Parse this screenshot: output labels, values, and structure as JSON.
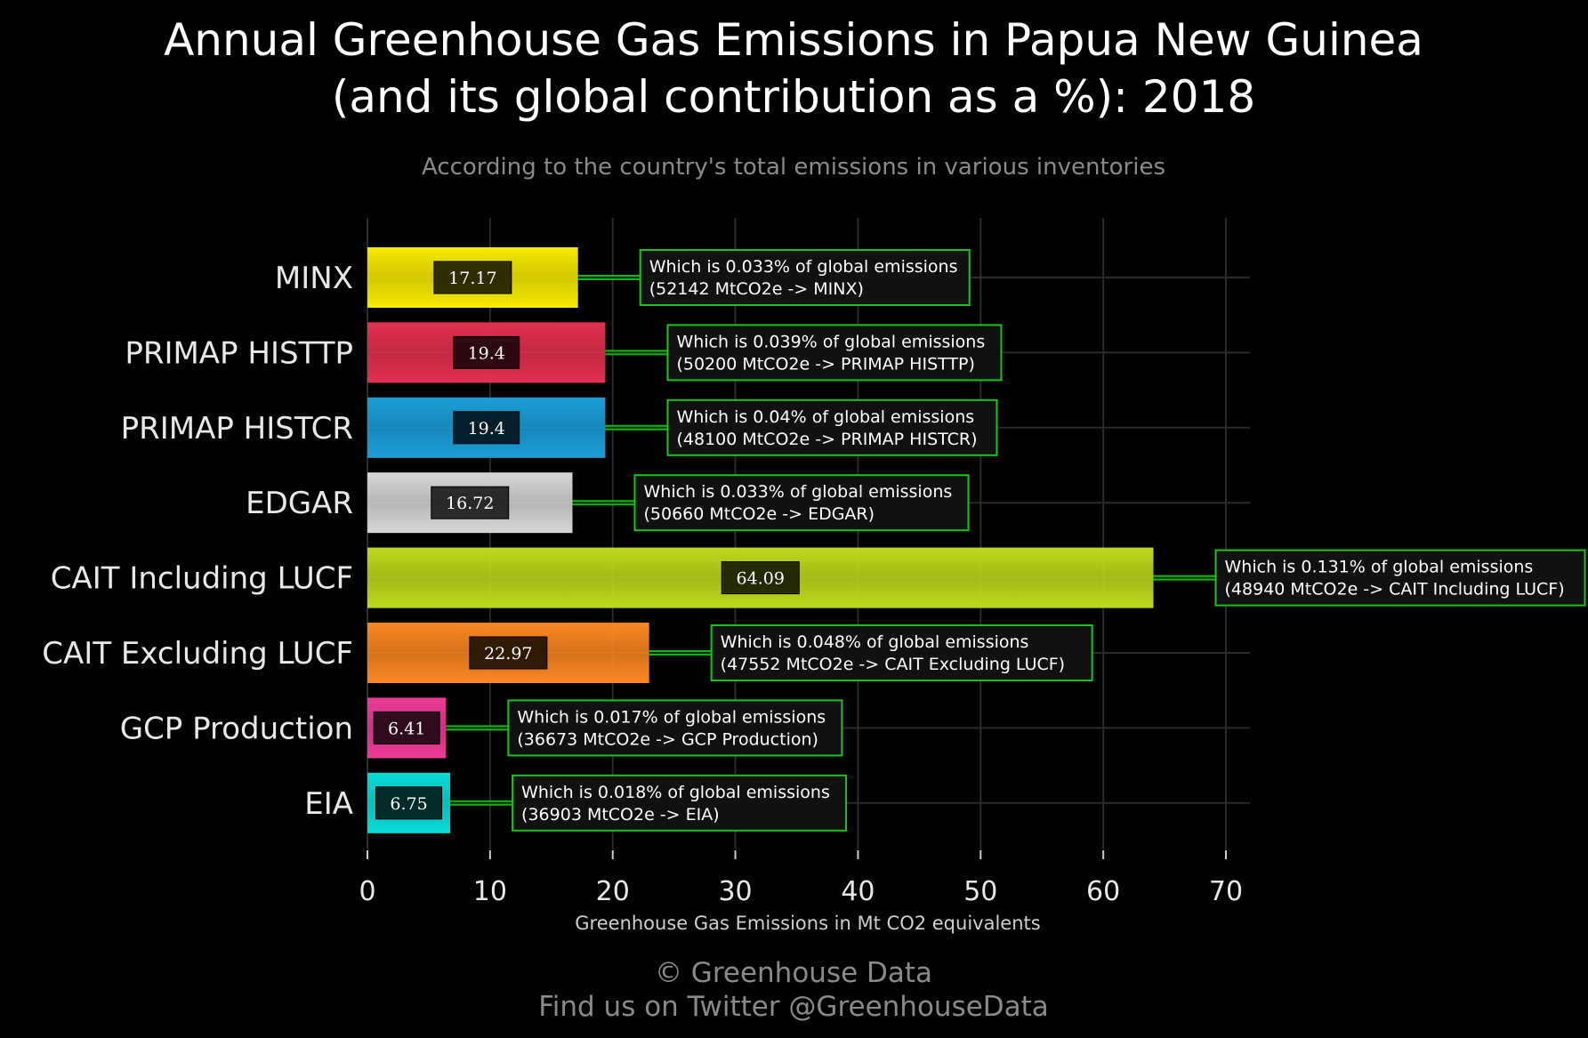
{
  "chart_data": {
    "type": "bar",
    "orientation": "horizontal",
    "title_line1": "Annual Greenhouse Gas Emissions in Papua New Guinea",
    "title_line2": "(and its global contribution as a %): 2018",
    "subtitle": "According to the country's total emissions in various inventories",
    "xlabel": "Greenhouse Gas Emissions in Mt CO2 equivalents",
    "xlim": [
      0,
      72
    ],
    "xticks": [
      0,
      10,
      20,
      30,
      40,
      50,
      60,
      70
    ],
    "grid": true,
    "categories": [
      "MINX",
      "PRIMAP HISTTP",
      "PRIMAP HISTCR",
      "EDGAR",
      "CAIT Including LUCF",
      "CAIT Excluding LUCF",
      "GCP Production",
      "EIA"
    ],
    "values": [
      17.17,
      19.4,
      19.4,
      16.72,
      64.09,
      22.97,
      6.41,
      6.75
    ],
    "value_labels": [
      "17.17",
      "19.4",
      "19.4",
      "16.72",
      "64.09",
      "22.97",
      "6.41",
      "6.75"
    ],
    "colors": [
      "#f7ea00",
      "#e33051",
      "#1b9fd8",
      "#d6d6d6",
      "#bfd91c",
      "#fb8722",
      "#ee3b95",
      "#08dcd8"
    ],
    "annotations": [
      {
        "line1": "Which is 0.033% of global emissions",
        "line2": "(52142 MtCO2e -> MINX)"
      },
      {
        "line1": "Which is 0.039% of global emissions",
        "line2": "(50200 MtCO2e -> PRIMAP HISTTP)"
      },
      {
        "line1": "Which is 0.04% of global emissions",
        "line2": "(48100 MtCO2e -> PRIMAP HISTCR)"
      },
      {
        "line1": "Which is 0.033% of global emissions",
        "line2": "(50660 MtCO2e -> EDGAR)"
      },
      {
        "line1": "Which is 0.131% of global emissions",
        "line2": "(48940 MtCO2e -> CAIT Including LUCF)"
      },
      {
        "line1": "Which is 0.048% of global emissions",
        "line2": "(47552 MtCO2e -> CAIT Excluding LUCF)"
      },
      {
        "line1": "Which is 0.017% of global emissions",
        "line2": "(36673 MtCO2e -> GCP Production)"
      },
      {
        "line1": "Which is 0.018% of global emissions",
        "line2": "(36903 MtCO2e -> EIA)"
      }
    ],
    "annotation_border_color": "#19c519",
    "footer_line1": "© Greenhouse Data",
    "footer_line2": "Find us on Twitter @GreenhouseData"
  }
}
